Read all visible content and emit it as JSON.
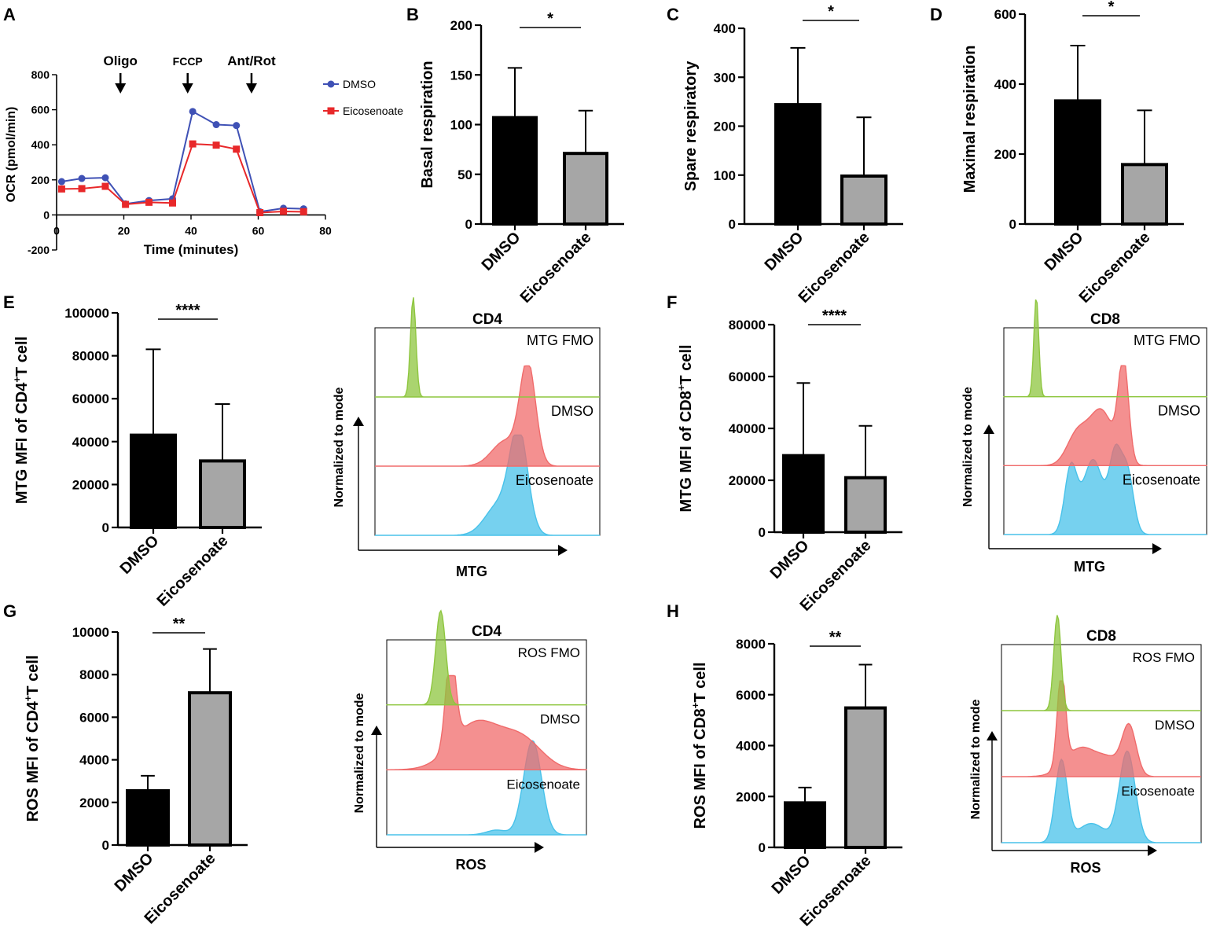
{
  "figure": {
    "panel_labels": [
      "A",
      "B",
      "C",
      "D",
      "E",
      "F",
      "G",
      "H"
    ]
  },
  "colors": {
    "dmso_bar": "#000000",
    "eico_bar": "#a6a6a6",
    "dmso_line": "#3f51b5",
    "eico_line": "#e8282a",
    "fmo_fill": "#8ec63f",
    "dmso_fill": "#f06b6b",
    "eico_fill": "#48c2ea"
  },
  "chart_data": [
    {
      "id": "A",
      "type": "line",
      "xlabel": "Time (minutes)",
      "ylabel": "OCR (pmol/min)",
      "xlim": [
        0,
        80
      ],
      "ylim": [
        -200,
        800
      ],
      "xticks": [
        0,
        20,
        40,
        60,
        80
      ],
      "yticks": [
        -200,
        0,
        200,
        400,
        600,
        800
      ],
      "x": [
        1.5,
        7.5,
        14.5,
        20.5,
        27.5,
        34.5,
        40.5,
        47.5,
        53.5,
        60.5,
        67.5,
        73.5
      ],
      "series": [
        {
          "name": "DMSO",
          "marker": "circle",
          "values": [
            190,
            208,
            212,
            63,
            82,
            92,
            590,
            515,
            510,
            18,
            38,
            35
          ]
        },
        {
          "name": "Eicosenoate",
          "marker": "square",
          "values": [
            148,
            150,
            163,
            60,
            72,
            68,
            405,
            398,
            375,
            13,
            20,
            18
          ]
        }
      ],
      "injections": [
        {
          "label": "Oligo",
          "x": 19
        },
        {
          "label": "FCCP",
          "x": 39
        },
        {
          "label": "Ant/Rot",
          "x": 58
        }
      ],
      "legend": "right"
    },
    {
      "id": "B",
      "type": "bar",
      "ylabel": "Basal respiration",
      "categories": [
        "DMSO",
        "Eicosenoate"
      ],
      "values": [
        107,
        71
      ],
      "errors": [
        50,
        43
      ],
      "ylim": [
        0,
        200
      ],
      "yticks": [
        0,
        50,
        100,
        150,
        200
      ],
      "significance": "*"
    },
    {
      "id": "C",
      "type": "bar",
      "ylabel": "Spare respiratory",
      "categories": [
        "DMSO",
        "Eicosenoate"
      ],
      "values": [
        244,
        98
      ],
      "errors": [
        116,
        120
      ],
      "ylim": [
        0,
        400
      ],
      "yticks": [
        0,
        100,
        200,
        300,
        400
      ],
      "significance": "*"
    },
    {
      "id": "D",
      "type": "bar",
      "ylabel": "Maximal respiration",
      "categories": [
        "DMSO",
        "Eicosenoate"
      ],
      "values": [
        352,
        170
      ],
      "errors": [
        158,
        155
      ],
      "ylim": [
        0,
        600
      ],
      "yticks": [
        0,
        200,
        400,
        600
      ],
      "significance": "*"
    },
    {
      "id": "E",
      "type": "bar",
      "ylabel": "MTG MFI of CD4",
      "ylabel_sup": "+",
      "ylabel_tail": "T cell",
      "categories": [
        "DMSO",
        "Eicosenoate"
      ],
      "values": [
        43000,
        31000
      ],
      "errors": [
        40000,
        26500
      ],
      "ylim": [
        0,
        100000
      ],
      "yticks": [
        0,
        20000,
        40000,
        60000,
        80000,
        100000
      ],
      "significance": "****"
    },
    {
      "id": "F",
      "type": "bar",
      "ylabel": "MTG MFI of CD8",
      "ylabel_sup": "+",
      "ylabel_tail": "T cell",
      "categories": [
        "DMSO",
        "Eicosenoate"
      ],
      "values": [
        29500,
        21000
      ],
      "errors": [
        28000,
        20000
      ],
      "ylim": [
        0,
        80000
      ],
      "yticks": [
        0,
        20000,
        40000,
        60000,
        80000
      ],
      "significance": "****"
    },
    {
      "id": "G",
      "type": "bar",
      "ylabel": "ROS MFI of CD4",
      "ylabel_sup": "+",
      "ylabel_tail": "T cell",
      "categories": [
        "DMSO",
        "Eicosenoate"
      ],
      "values": [
        2550,
        7150
      ],
      "errors": [
        700,
        2050
      ],
      "ylim": [
        0,
        10000
      ],
      "yticks": [
        0,
        2000,
        4000,
        6000,
        8000,
        10000
      ],
      "significance": "**"
    },
    {
      "id": "H",
      "type": "bar",
      "ylabel": "ROS MFI of CD8",
      "ylabel_sup": "+",
      "ylabel_tail": "T cell",
      "categories": [
        "DMSO",
        "Eicosenoate"
      ],
      "values": [
        1750,
        5480
      ],
      "errors": [
        600,
        1700
      ],
      "ylim": [
        0,
        8000
      ],
      "yticks": [
        0,
        2000,
        4000,
        6000,
        8000
      ],
      "significance": "**"
    },
    {
      "id": "E-hist",
      "type": "area",
      "title": "CD4",
      "xlabel": "MTG",
      "ylabel": "Normalized to mode",
      "tracks": [
        {
          "label": "MTG FMO",
          "peaks": [
            [
              0.17,
              1.0,
              0.012
            ]
          ]
        },
        {
          "label": "DMSO",
          "peaks": [
            [
              0.68,
              1.0,
              0.035
            ],
            [
              0.58,
              0.25,
              0.06
            ]
          ]
        },
        {
          "label": "Eicosenoate",
          "peaks": [
            [
              0.64,
              1.0,
              0.04
            ],
            [
              0.55,
              0.3,
              0.06
            ]
          ]
        }
      ]
    },
    {
      "id": "F-hist",
      "type": "area",
      "title": "CD8",
      "xlabel": "MTG",
      "ylabel": "Normalized to mode",
      "tracks": [
        {
          "label": "MTG FMO",
          "peaks": [
            [
              0.16,
              1.0,
              0.012
            ]
          ]
        },
        {
          "label": "DMSO",
          "peaks": [
            [
              0.59,
              1.0,
              0.025
            ],
            [
              0.48,
              0.55,
              0.06
            ],
            [
              0.36,
              0.3,
              0.05
            ]
          ]
        },
        {
          "label": "Eicosenoate",
          "peaks": [
            [
              0.33,
              0.65,
              0.03
            ],
            [
              0.44,
              0.75,
              0.05
            ],
            [
              0.55,
              0.75,
              0.03
            ],
            [
              0.61,
              0.6,
              0.03
            ]
          ]
        }
      ]
    },
    {
      "id": "G-hist",
      "type": "area",
      "title": "CD4",
      "xlabel": "ROS",
      "ylabel": "Normalized to mode",
      "tracks": [
        {
          "label": "ROS FMO",
          "peaks": [
            [
              0.27,
              1.0,
              0.025
            ]
          ]
        },
        {
          "label": "DMSO",
          "peaks": [
            [
              0.32,
              1.0,
              0.025
            ],
            [
              0.45,
              0.5,
              0.12
            ],
            [
              0.68,
              0.3,
              0.1
            ]
          ]
        },
        {
          "label": "Eicosenoate",
          "peaks": [
            [
              0.73,
              1.0,
              0.045
            ],
            [
              0.55,
              0.05,
              0.05
            ]
          ]
        }
      ]
    },
    {
      "id": "H-hist",
      "type": "area",
      "title": "CD8",
      "xlabel": "ROS",
      "ylabel": "Normalized to mode",
      "tracks": [
        {
          "label": "ROS FMO",
          "peaks": [
            [
              0.28,
              1.0,
              0.018
            ]
          ]
        },
        {
          "label": "DMSO",
          "peaks": [
            [
              0.3,
              1.0,
              0.02
            ],
            [
              0.4,
              0.3,
              0.08
            ],
            [
              0.64,
              0.5,
              0.035
            ],
            [
              0.55,
              0.15,
              0.06
            ]
          ]
        },
        {
          "label": "Eicosenoate",
          "peaks": [
            [
              0.3,
              0.85,
              0.03
            ],
            [
              0.63,
              0.95,
              0.04
            ],
            [
              0.45,
              0.2,
              0.07
            ]
          ]
        }
      ]
    }
  ]
}
